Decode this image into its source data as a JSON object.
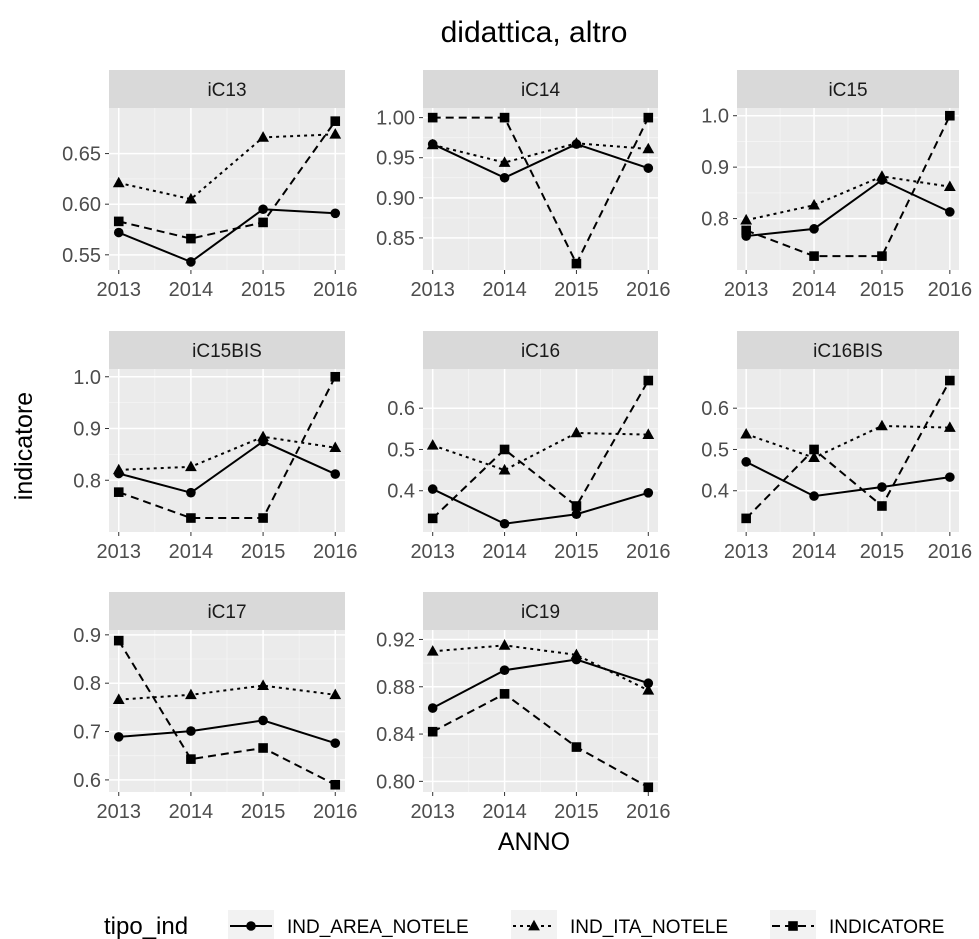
{
  "chart_data": {
    "type": "line",
    "title": "didattica, altro",
    "xlabel": "ANNO",
    "ylabel": "indicatore",
    "x": [
      2013,
      2014,
      2015,
      2016
    ],
    "legend": {
      "title": "tipo_ind",
      "position": "bottom",
      "entries": [
        {
          "name": "IND_AREA_NOTELE",
          "shape": "circle",
          "dash": "solid"
        },
        {
          "name": "IND_ITA_NOTELE",
          "shape": "triangle",
          "dash": "dotted"
        },
        {
          "name": "INDICATORE",
          "shape": "square",
          "dash": "dashed"
        }
      ]
    },
    "grid": true,
    "panels": [
      {
        "label": "iC13",
        "ylim": [
          0.535,
          0.695
        ],
        "yticks": [
          0.55,
          0.6,
          0.65
        ],
        "ytick_labels": [
          "0.55",
          "0.60",
          "0.65"
        ],
        "series": [
          {
            "name": "IND_AREA_NOTELE",
            "values": [
              0.572,
              0.543,
              0.595,
              0.591
            ]
          },
          {
            "name": "IND_ITA_NOTELE",
            "values": [
              0.621,
              0.605,
              0.666,
              0.669
            ]
          },
          {
            "name": "INDICATORE",
            "values": [
              0.583,
              0.566,
              0.582,
              0.682
            ]
          }
        ]
      },
      {
        "label": "iC14",
        "ylim": [
          0.81,
          1.012
        ],
        "yticks": [
          0.85,
          0.9,
          0.95,
          1.0
        ],
        "ytick_labels": [
          "0.85",
          "0.90",
          "0.95",
          "1.00"
        ],
        "series": [
          {
            "name": "IND_AREA_NOTELE",
            "values": [
              0.967,
              0.925,
              0.967,
              0.937
            ]
          },
          {
            "name": "IND_ITA_NOTELE",
            "values": [
              0.966,
              0.944,
              0.968,
              0.961
            ]
          },
          {
            "name": "INDICATORE",
            "values": [
              1.0,
              1.0,
              0.818,
              1.0
            ]
          }
        ]
      },
      {
        "label": "iC15",
        "ylim": [
          0.7,
          1.015
        ],
        "yticks": [
          0.8,
          0.9,
          1.0
        ],
        "ytick_labels": [
          "0.8",
          "0.9",
          "1.0"
        ],
        "series": [
          {
            "name": "IND_AREA_NOTELE",
            "values": [
              0.766,
              0.78,
              0.875,
              0.813
            ]
          },
          {
            "name": "IND_ITA_NOTELE",
            "values": [
              0.797,
              0.826,
              0.882,
              0.862
            ]
          },
          {
            "name": "INDICATORE",
            "values": [
              0.777,
              0.727,
              0.727,
              1.0
            ]
          }
        ]
      },
      {
        "label": "iC15BIS",
        "ylim": [
          0.7,
          1.015
        ],
        "yticks": [
          0.8,
          0.9,
          1.0
        ],
        "ytick_labels": [
          "0.8",
          "0.9",
          "1.0"
        ],
        "series": [
          {
            "name": "IND_AREA_NOTELE",
            "values": [
              0.813,
              0.776,
              0.875,
              0.812
            ]
          },
          {
            "name": "IND_ITA_NOTELE",
            "values": [
              0.82,
              0.826,
              0.884,
              0.863
            ]
          },
          {
            "name": "INDICATORE",
            "values": [
              0.777,
              0.727,
              0.727,
              1.0
            ]
          }
        ]
      },
      {
        "label": "iC16",
        "ylim": [
          0.3,
          0.695
        ],
        "yticks": [
          0.4,
          0.5,
          0.6
        ],
        "ytick_labels": [
          "0.4",
          "0.5",
          "0.6"
        ],
        "series": [
          {
            "name": "IND_AREA_NOTELE",
            "values": [
              0.404,
              0.32,
              0.343,
              0.395
            ]
          },
          {
            "name": "IND_ITA_NOTELE",
            "values": [
              0.51,
              0.45,
              0.54,
              0.536
            ]
          },
          {
            "name": "INDICATORE",
            "values": [
              0.333,
              0.5,
              0.363,
              0.667
            ]
          }
        ]
      },
      {
        "label": "iC16BIS",
        "ylim": [
          0.3,
          0.695
        ],
        "yticks": [
          0.4,
          0.5,
          0.6
        ],
        "ytick_labels": [
          "0.4",
          "0.5",
          "0.6"
        ],
        "series": [
          {
            "name": "IND_AREA_NOTELE",
            "values": [
              0.47,
              0.387,
              0.409,
              0.433
            ]
          },
          {
            "name": "IND_ITA_NOTELE",
            "values": [
              0.537,
              0.48,
              0.557,
              0.553
            ]
          },
          {
            "name": "INDICATORE",
            "values": [
              0.333,
              0.5,
              0.363,
              0.667
            ]
          }
        ]
      },
      {
        "label": "iC17",
        "ylim": [
          0.575,
          0.91
        ],
        "yticks": [
          0.6,
          0.7,
          0.8,
          0.9
        ],
        "ytick_labels": [
          "0.6",
          "0.7",
          "0.8",
          "0.9"
        ],
        "series": [
          {
            "name": "IND_AREA_NOTELE",
            "values": [
              0.689,
              0.701,
              0.723,
              0.676
            ]
          },
          {
            "name": "IND_ITA_NOTELE",
            "values": [
              0.766,
              0.776,
              0.795,
              0.776
            ]
          },
          {
            "name": "INDICATORE",
            "values": [
              0.888,
              0.643,
              0.666,
              0.59
            ]
          }
        ]
      },
      {
        "label": "iC19",
        "ylim": [
          0.791,
          0.928
        ],
        "yticks": [
          0.8,
          0.84,
          0.88,
          0.92
        ],
        "ytick_labels": [
          "0.80",
          "0.84",
          "0.88",
          "0.92"
        ],
        "series": [
          {
            "name": "IND_AREA_NOTELE",
            "values": [
              0.862,
              0.894,
              0.903,
              0.883
            ]
          },
          {
            "name": "IND_ITA_NOTELE",
            "values": [
              0.91,
              0.915,
              0.907,
              0.877
            ]
          },
          {
            "name": "INDICATORE",
            "values": [
              0.842,
              0.874,
              0.829,
              0.795
            ]
          }
        ]
      }
    ]
  }
}
